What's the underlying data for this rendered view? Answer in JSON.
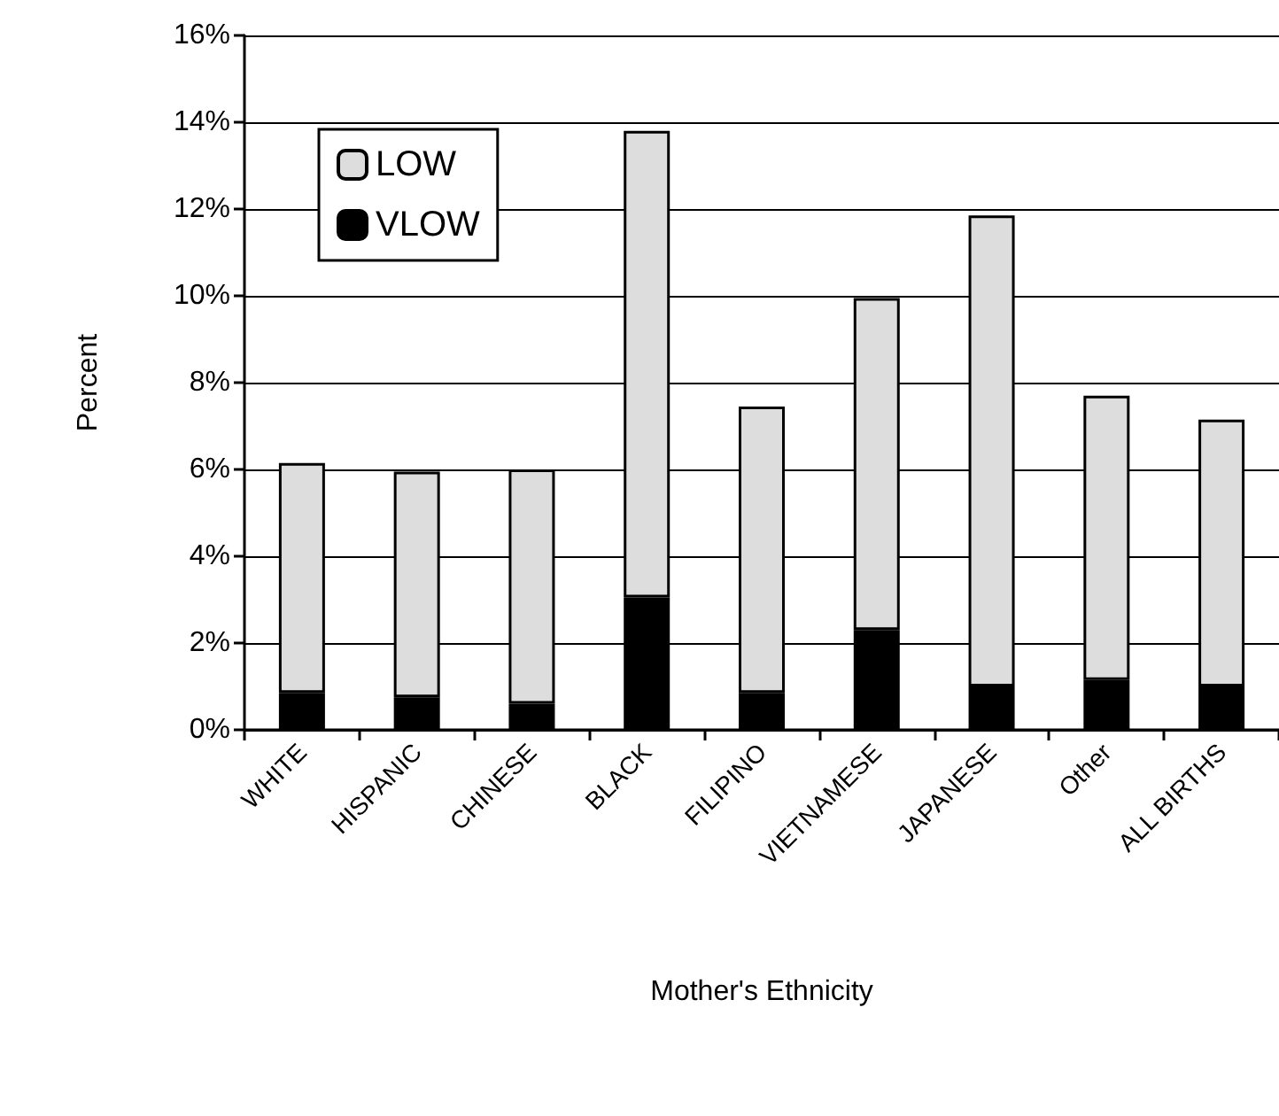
{
  "chart_data": {
    "type": "bar",
    "stacked": true,
    "xlabel": "Mother's Ethnicity",
    "ylabel": "Percent",
    "categories": [
      "WHITE",
      "HISPANIC",
      "CHINESE",
      "BLACK",
      "FILIPINO",
      "VIETNAMESE",
      "JAPANESE",
      "Other",
      "ALL BIRTHS"
    ],
    "series": [
      {
        "name": "VLOW",
        "color": "#000000",
        "values": [
          0.85,
          0.75,
          0.6,
          3.05,
          0.85,
          2.3,
          1.0,
          1.15,
          1.0
        ]
      },
      {
        "name": "LOW",
        "color": "#dddddd",
        "values": [
          5.3,
          5.2,
          5.4,
          10.75,
          6.6,
          7.65,
          10.85,
          6.55,
          6.15
        ]
      }
    ],
    "ylim": [
      0,
      16
    ],
    "yticks": [
      {
        "value": 0,
        "label": "0%"
      },
      {
        "value": 2,
        "label": "2%"
      },
      {
        "value": 4,
        "label": "4%"
      },
      {
        "value": 6,
        "label": "6%"
      },
      {
        "value": 8,
        "label": "8%"
      },
      {
        "value": 10,
        "label": "10%"
      },
      {
        "value": 12,
        "label": "12%"
      },
      {
        "value": 14,
        "label": "14%"
      },
      {
        "value": 16,
        "label": "16%"
      }
    ],
    "grid": "y",
    "legend": "top left"
  }
}
